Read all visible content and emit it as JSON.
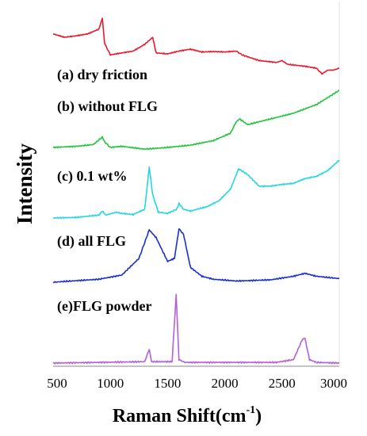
{
  "chart_data": {
    "type": "line",
    "title": "",
    "xlabel": "Raman Shift(cm",
    "xlabel_sup": "-1",
    "xlabel_close": ")",
    "ylabel": "Intensity",
    "xlim": [
      500,
      3000
    ],
    "x_ticks": [
      500,
      1000,
      1500,
      2000,
      2500,
      3000
    ],
    "grid": false,
    "legend": "inline labels above each curve",
    "y_units": "arbitrary (offset stacked spectra, relative intensity 0-1 within each band)",
    "series": [
      {
        "name": "(a) dry friction",
        "color": "#e8192c",
        "points": [
          [
            500,
            0.62
          ],
          [
            600,
            0.55
          ],
          [
            700,
            0.58
          ],
          [
            800,
            0.62
          ],
          [
            900,
            0.72
          ],
          [
            930,
            0.95
          ],
          [
            950,
            0.42
          ],
          [
            1000,
            0.18
          ],
          [
            1100,
            0.22
          ],
          [
            1200,
            0.26
          ],
          [
            1300,
            0.4
          ],
          [
            1370,
            0.55
          ],
          [
            1400,
            0.22
          ],
          [
            1500,
            0.2
          ],
          [
            1600,
            0.26
          ],
          [
            1700,
            0.3
          ],
          [
            1800,
            0.24
          ],
          [
            1900,
            0.25
          ],
          [
            2000,
            0.24
          ],
          [
            2100,
            0.26
          ],
          [
            2150,
            0.18
          ],
          [
            2300,
            0.06
          ],
          [
            2450,
            0.02
          ],
          [
            2500,
            0.06
          ],
          [
            2550,
            -0.02
          ],
          [
            2700,
            -0.06
          ],
          [
            2800,
            -0.1
          ],
          [
            2850,
            -0.22
          ],
          [
            2900,
            -0.14
          ],
          [
            2950,
            -0.14
          ],
          [
            3000,
            -0.1
          ]
        ]
      },
      {
        "name": "(b) without FLG",
        "color": "#21c43b",
        "points": [
          [
            500,
            0.0
          ],
          [
            700,
            0.02
          ],
          [
            850,
            0.05
          ],
          [
            930,
            0.18
          ],
          [
            950,
            0.1
          ],
          [
            1000,
            0.0
          ],
          [
            1100,
            0.02
          ],
          [
            1300,
            -0.03
          ],
          [
            1500,
            0.0
          ],
          [
            1700,
            0.04
          ],
          [
            1900,
            0.12
          ],
          [
            2050,
            0.25
          ],
          [
            2100,
            0.45
          ],
          [
            2130,
            0.5
          ],
          [
            2200,
            0.4
          ],
          [
            2400,
            0.5
          ],
          [
            2600,
            0.6
          ],
          [
            2800,
            0.75
          ],
          [
            3000,
            1.0
          ]
        ]
      },
      {
        "name": "(c) 0.1 wt%",
        "color": "#24d6e3",
        "points": [
          [
            500,
            0.0
          ],
          [
            700,
            0.01
          ],
          [
            900,
            0.05
          ],
          [
            930,
            0.12
          ],
          [
            960,
            0.05
          ],
          [
            1050,
            0.1
          ],
          [
            1100,
            0.08
          ],
          [
            1200,
            0.06
          ],
          [
            1300,
            0.15
          ],
          [
            1340,
            0.88
          ],
          [
            1370,
            0.4
          ],
          [
            1420,
            0.1
          ],
          [
            1500,
            0.08
          ],
          [
            1580,
            0.15
          ],
          [
            1600,
            0.25
          ],
          [
            1640,
            0.15
          ],
          [
            1700,
            0.12
          ],
          [
            1850,
            0.2
          ],
          [
            1950,
            0.3
          ],
          [
            2050,
            0.5
          ],
          [
            2120,
            0.85
          ],
          [
            2200,
            0.75
          ],
          [
            2300,
            0.55
          ],
          [
            2400,
            0.55
          ],
          [
            2500,
            0.58
          ],
          [
            2600,
            0.6
          ],
          [
            2700,
            0.68
          ],
          [
            2800,
            0.72
          ],
          [
            2900,
            0.82
          ],
          [
            3000,
            1.0
          ]
        ]
      },
      {
        "name": "(d) all FLG",
        "color": "#1930c8",
        "points": [
          [
            500,
            0.0
          ],
          [
            900,
            0.05
          ],
          [
            1100,
            0.12
          ],
          [
            1250,
            0.4
          ],
          [
            1340,
            0.88
          ],
          [
            1400,
            0.75
          ],
          [
            1500,
            0.35
          ],
          [
            1560,
            0.4
          ],
          [
            1600,
            0.9
          ],
          [
            1640,
            0.8
          ],
          [
            1700,
            0.25
          ],
          [
            1800,
            0.1
          ],
          [
            1900,
            0.05
          ],
          [
            2100,
            0.02
          ],
          [
            2400,
            0.04
          ],
          [
            2600,
            0.1
          ],
          [
            2700,
            0.15
          ],
          [
            2800,
            0.1
          ],
          [
            3000,
            0.06
          ]
        ]
      },
      {
        "name": "(e)FLG powder",
        "color": "#b35fd9",
        "points": [
          [
            500,
            0.0
          ],
          [
            1300,
            0.02
          ],
          [
            1340,
            0.2
          ],
          [
            1360,
            0.02
          ],
          [
            1540,
            0.02
          ],
          [
            1575,
            1.0
          ],
          [
            1600,
            0.05
          ],
          [
            1650,
            0.01
          ],
          [
            2450,
            0.01
          ],
          [
            2600,
            0.05
          ],
          [
            2680,
            0.35
          ],
          [
            2700,
            0.36
          ],
          [
            2740,
            0.05
          ],
          [
            2800,
            0.01
          ],
          [
            3000,
            0.0
          ]
        ]
      }
    ]
  }
}
